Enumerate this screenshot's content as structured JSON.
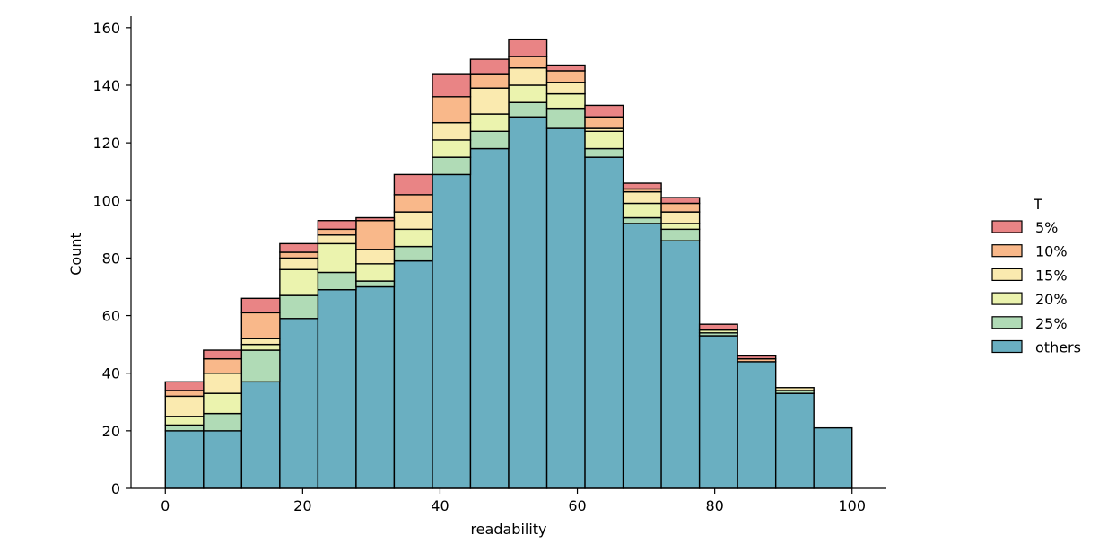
{
  "chart_data": {
    "type": "bar",
    "stacked": true,
    "xlabel": "readability",
    "ylabel": "Count",
    "xlim": [
      -5,
      105
    ],
    "ylim": [
      0,
      164
    ],
    "x_ticks": [
      0,
      20,
      40,
      60,
      80,
      100
    ],
    "y_ticks": [
      0,
      20,
      40,
      60,
      80,
      100,
      120,
      140,
      160
    ],
    "bin_edges": [
      0,
      5.56,
      11.11,
      16.67,
      22.22,
      27.78,
      33.33,
      38.89,
      44.44,
      50,
      55.56,
      61.11,
      66.67,
      72.22,
      77.78,
      83.33,
      88.89,
      94.44,
      100
    ],
    "legend_title": "T",
    "legend_position": "right",
    "grid": false,
    "series": [
      {
        "name": "others",
        "color": "#6aafc1",
        "values": [
          20,
          20,
          37,
          59,
          69,
          70,
          79,
          109,
          118,
          129,
          125,
          115,
          92,
          86,
          53,
          44,
          33,
          21
        ]
      },
      {
        "name": "25%",
        "color": "#b0dbb6",
        "values": [
          2,
          6,
          11,
          8,
          6,
          2,
          5,
          6,
          6,
          5,
          7,
          3,
          2,
          4,
          1,
          0,
          1,
          0
        ]
      },
      {
        "name": "20%",
        "color": "#ebf3ae",
        "values": [
          3,
          7,
          2,
          9,
          10,
          6,
          6,
          6,
          6,
          6,
          5,
          6,
          5,
          2,
          1,
          0,
          0,
          0
        ]
      },
      {
        "name": "15%",
        "color": "#faeaaf",
        "values": [
          7,
          7,
          2,
          4,
          3,
          5,
          6,
          6,
          9,
          6,
          4,
          1,
          4,
          4,
          0,
          0,
          1,
          0
        ]
      },
      {
        "name": "10%",
        "color": "#f9b88a",
        "values": [
          2,
          5,
          9,
          2,
          2,
          10,
          6,
          9,
          5,
          4,
          4,
          4,
          1,
          3,
          0,
          1,
          0,
          0
        ]
      },
      {
        "name": "5%",
        "color": "#e98485",
        "values": [
          3,
          3,
          5,
          3,
          3,
          1,
          7,
          8,
          5,
          6,
          2,
          4,
          2,
          2,
          2,
          1,
          0,
          0
        ]
      }
    ],
    "legend_order": [
      "5%",
      "10%",
      "15%",
      "20%",
      "25%",
      "others"
    ]
  }
}
